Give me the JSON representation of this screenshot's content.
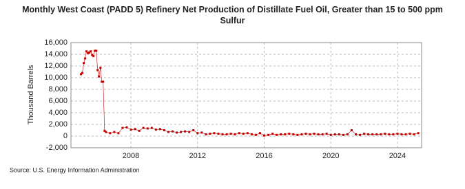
{
  "chart_data": {
    "type": "line",
    "title": "Monthly West Coast (PADD 5) Refinery Net Production of Distillate Fuel Oil, Greater than 15 to 500 ppm Sulfur",
    "y_label": "Thousand Barrels",
    "source": "Source: U.S. Energy Information Administration",
    "xlim": [
      2004.4,
      2025.45
    ],
    "xticks": [
      2008,
      2012,
      2016,
      2020,
      2024
    ],
    "ylim": [
      -2000,
      16000
    ],
    "yticks": [
      {
        "value": -2000,
        "label": "-2,000"
      },
      0,
      {
        "value": 2000,
        "label": "2,000"
      },
      {
        "value": 4000,
        "label": "4,000"
      },
      {
        "value": 6000,
        "label": "6,000"
      },
      {
        "value": 8000,
        "label": "8,000"
      },
      {
        "value": 10000,
        "label": "10,000"
      },
      {
        "value": 12000,
        "label": "12,000"
      },
      {
        "value": 14000,
        "label": "14,000"
      },
      {
        "value": 16000,
        "label": "16,000"
      }
    ],
    "grid": true,
    "x": [
      2005,
      2005.08,
      2005.17,
      2005.25,
      2005.33,
      2005.42,
      2005.5,
      2005.58,
      2005.67,
      2005.75,
      2005.83,
      2005.92,
      2006,
      2006.08,
      2006.17,
      2006.25,
      2006.33,
      2006.42,
      2006.5,
      2006.75,
      2007,
      2007.25,
      2007.5,
      2007.75,
      2008,
      2008.25,
      2008.5,
      2008.75,
      2009,
      2009.25,
      2009.5,
      2009.75,
      2010,
      2010.25,
      2010.5,
      2010.75,
      2011,
      2011.25,
      2011.5,
      2011.75,
      2012,
      2012.25,
      2012.5,
      2012.75,
      2013,
      2013.25,
      2013.5,
      2013.75,
      2014,
      2014.25,
      2014.5,
      2014.75,
      2015,
      2015.25,
      2015.5,
      2015.75,
      2016,
      2016.25,
      2016.5,
      2016.75,
      2017,
      2017.25,
      2017.5,
      2017.75,
      2018,
      2018.25,
      2018.5,
      2018.75,
      2019,
      2019.25,
      2019.5,
      2019.75,
      2020,
      2020.25,
      2020.5,
      2020.75,
      2021,
      2021.25,
      2021.5,
      2021.75,
      2022,
      2022.25,
      2022.5,
      2022.75,
      2023,
      2023.25,
      2023.5,
      2023.75,
      2024,
      2024.25,
      2024.5,
      2024.75,
      2025,
      2025.25
    ],
    "series": [
      {
        "color": "#c00000",
        "values": [
          10600,
          10800,
          12500,
          13300,
          14500,
          14200,
          14300,
          14500,
          13900,
          13700,
          14600,
          14600,
          11300,
          10200,
          11700,
          9300,
          9300,
          900,
          700,
          500,
          700,
          500,
          1400,
          1500,
          1100,
          1200,
          900,
          1400,
          1300,
          1400,
          1100,
          1200,
          1000,
          700,
          800,
          600,
          700,
          800,
          700,
          1000,
          500,
          600,
          300,
          400,
          500,
          400,
          300,
          300,
          400,
          300,
          500,
          400,
          500,
          300,
          200,
          500,
          100,
          200,
          400,
          200,
          300,
          300,
          400,
          300,
          200,
          300,
          400,
          300,
          400,
          300,
          300,
          400,
          200,
          300,
          300,
          200,
          300,
          1000,
          300,
          200,
          400,
          300,
          300,
          300,
          300,
          400,
          300,
          300,
          400,
          300,
          300,
          400,
          300,
          500
        ]
      }
    ]
  }
}
